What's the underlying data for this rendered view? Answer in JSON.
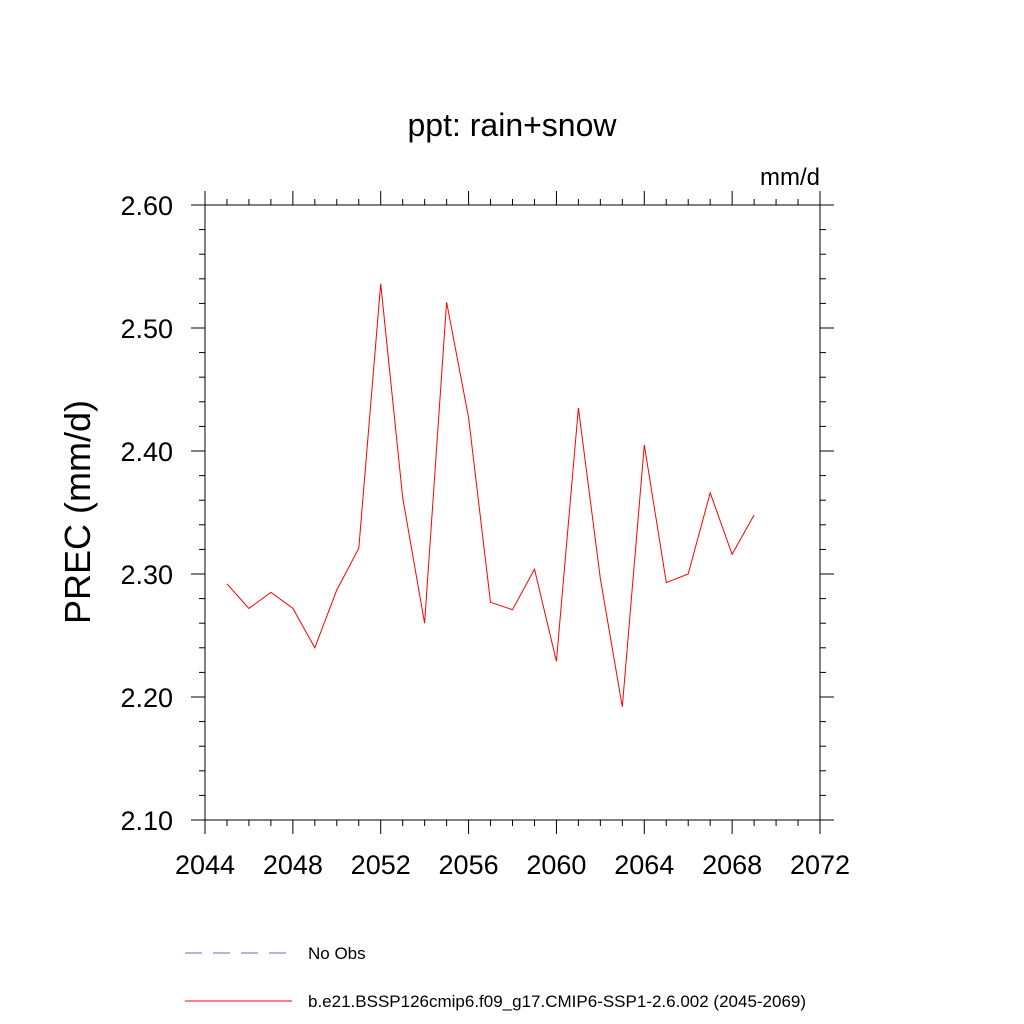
{
  "chart_data": {
    "type": "line",
    "title": "ppt: rain+snow",
    "units": "mm/d",
    "xlabel": "",
    "ylabel": "PREC  (mm/d)",
    "xlim": [
      2044,
      2072
    ],
    "ylim": [
      2.1,
      2.6
    ],
    "x_ticks": [
      "2044",
      "2048",
      "2052",
      "2056",
      "2060",
      "2064",
      "2068",
      "2072"
    ],
    "y_ticks": [
      "2.10",
      "2.20",
      "2.30",
      "2.40",
      "2.50",
      "2.60"
    ],
    "series": [
      {
        "name": "b.e21.BSSP126cmip6.f09_g17.CMIP6-SSP1-2.6.002 (2045-2069)",
        "color": "#ff0000",
        "style": "solid",
        "x": [
          2045,
          2046,
          2047,
          2048,
          2049,
          2050,
          2051,
          2052,
          2053,
          2054,
          2055,
          2056,
          2057,
          2058,
          2059,
          2060,
          2061,
          2062,
          2063,
          2064,
          2065,
          2066,
          2067,
          2068,
          2069
        ],
        "values": [
          2.292,
          2.272,
          2.285,
          2.272,
          2.24,
          2.287,
          2.321,
          2.536,
          2.362,
          2.26,
          2.521,
          2.427,
          2.277,
          2.271,
          2.304,
          2.229,
          2.435,
          2.296,
          2.192,
          2.405,
          2.293,
          2.3,
          2.366,
          2.316,
          2.348
        ]
      }
    ],
    "legend": [
      {
        "label": "No Obs",
        "color": "#6a6ab4",
        "style": "dashed"
      },
      {
        "label": "b.e21.BSSP126cmip6.f09_g17.CMIP6-SSP1-2.6.002 (2045-2069)",
        "color": "#ff0000",
        "style": "solid"
      }
    ],
    "legend_position": "bottom"
  }
}
